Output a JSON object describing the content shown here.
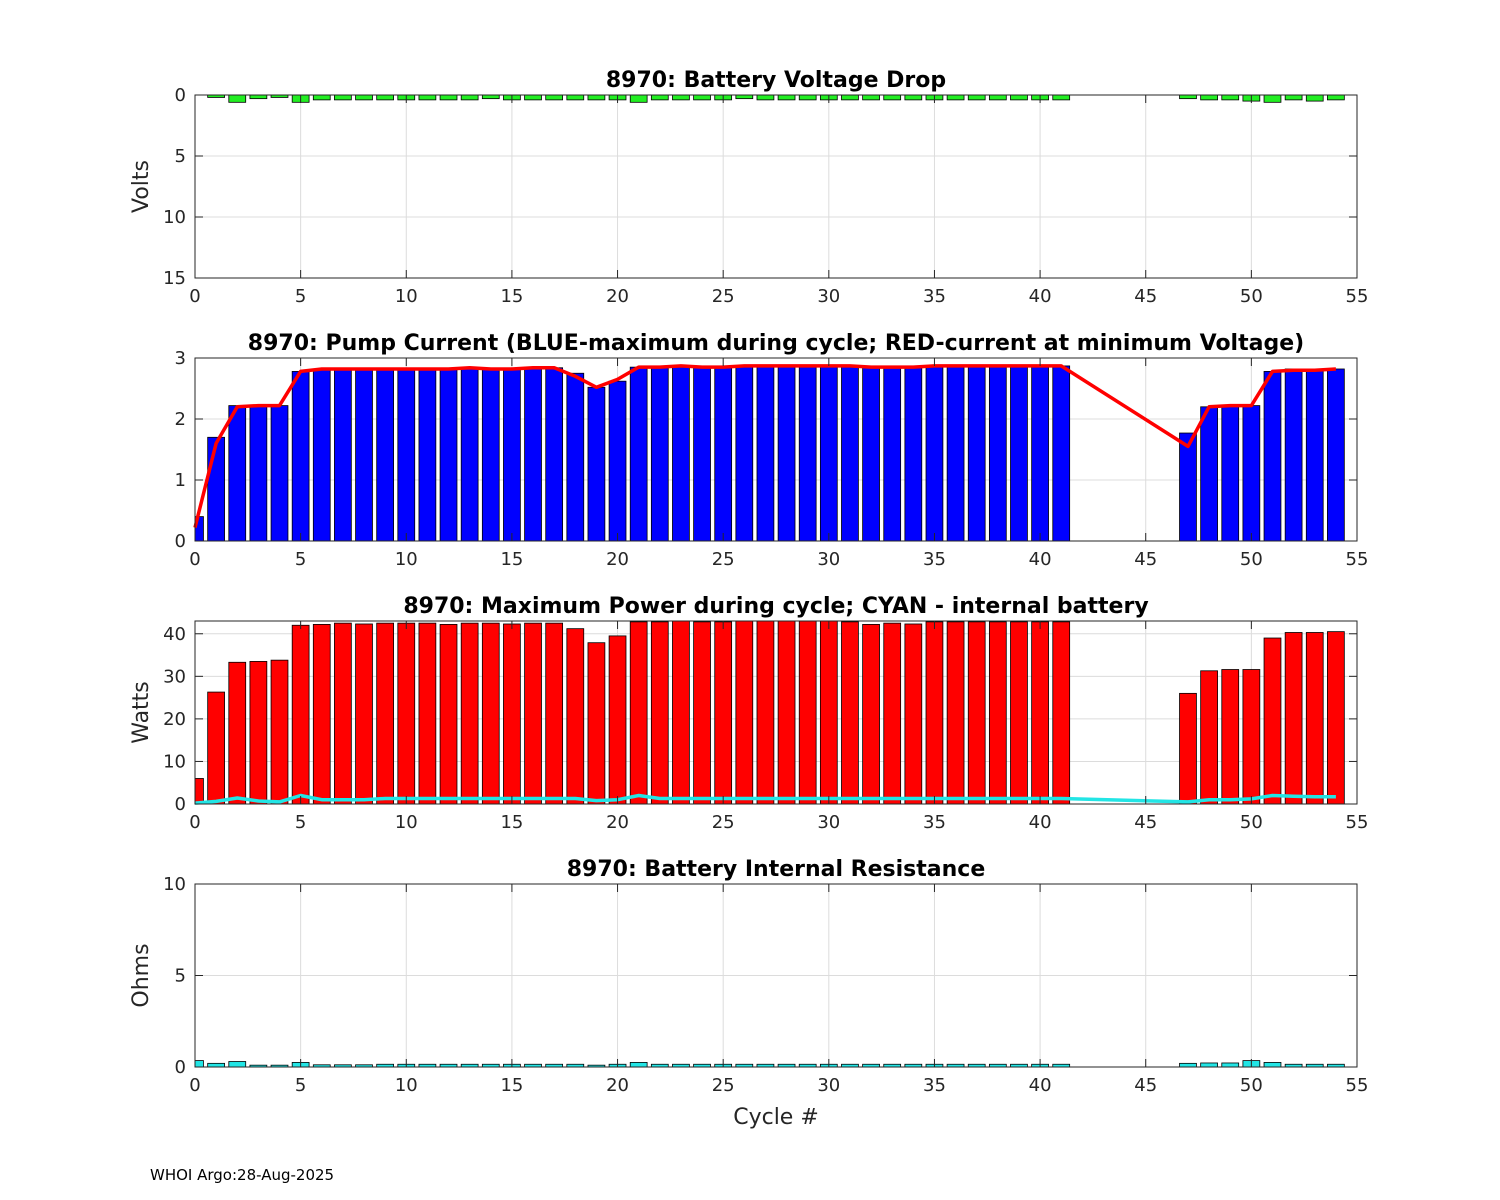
{
  "footer": "WHOI Argo:28-Aug-2025",
  "chart_data": [
    {
      "type": "bar",
      "title": "8970: Battery Voltage Drop",
      "ylabel": "Volts",
      "xlabel": "",
      "xlim": [
        0,
        55
      ],
      "ylim": [
        0,
        15
      ],
      "y_reversed": true,
      "xticks": [
        0,
        5,
        10,
        15,
        20,
        25,
        30,
        35,
        40,
        45,
        50,
        55
      ],
      "yticks": [
        0,
        5,
        10,
        15
      ],
      "grid": true,
      "bar_color": "#22ee22",
      "x": [
        1,
        2,
        3,
        4,
        5,
        6,
        7,
        8,
        9,
        10,
        11,
        12,
        13,
        14,
        15,
        16,
        17,
        18,
        19,
        20,
        21,
        22,
        23,
        24,
        25,
        26,
        27,
        28,
        29,
        30,
        31,
        32,
        33,
        34,
        35,
        36,
        37,
        38,
        39,
        40,
        41,
        47,
        48,
        49,
        50,
        51,
        52,
        53,
        54
      ],
      "values": [
        0.2,
        0.6,
        0.3,
        0.2,
        0.6,
        0.4,
        0.4,
        0.4,
        0.4,
        0.4,
        0.4,
        0.4,
        0.4,
        0.3,
        0.4,
        0.4,
        0.4,
        0.4,
        0.4,
        0.4,
        0.6,
        0.4,
        0.4,
        0.4,
        0.4,
        0.3,
        0.4,
        0.4,
        0.4,
        0.4,
        0.4,
        0.4,
        0.4,
        0.4,
        0.4,
        0.4,
        0.4,
        0.4,
        0.4,
        0.4,
        0.4,
        0.3,
        0.4,
        0.4,
        0.5,
        0.6,
        0.4,
        0.5,
        0.4
      ]
    },
    {
      "type": "bar",
      "title": "8970: Pump Current (BLUE-maximum during cycle; RED-current at minimum Voltage)",
      "ylabel": "",
      "xlabel": "",
      "xlim": [
        0,
        55
      ],
      "ylim": [
        0,
        3
      ],
      "xticks": [
        0,
        5,
        10,
        15,
        20,
        25,
        30,
        35,
        40,
        45,
        50,
        55
      ],
      "yticks": [
        0,
        1,
        2,
        3
      ],
      "grid": true,
      "bar_color": "#0000ff",
      "line_color": "#ff0000",
      "x": [
        0,
        1,
        2,
        3,
        4,
        5,
        6,
        7,
        8,
        9,
        10,
        11,
        12,
        13,
        14,
        15,
        16,
        17,
        18,
        19,
        20,
        21,
        22,
        23,
        24,
        25,
        26,
        27,
        28,
        29,
        30,
        31,
        32,
        33,
        34,
        35,
        36,
        37,
        38,
        39,
        40,
        41,
        47,
        48,
        49,
        50,
        51,
        52,
        53,
        54
      ],
      "values": [
        0.4,
        1.7,
        2.22,
        2.22,
        2.22,
        2.78,
        2.82,
        2.82,
        2.82,
        2.82,
        2.82,
        2.82,
        2.82,
        2.84,
        2.82,
        2.82,
        2.84,
        2.84,
        2.75,
        2.52,
        2.62,
        2.85,
        2.85,
        2.87,
        2.85,
        2.85,
        2.87,
        2.87,
        2.87,
        2.87,
        2.87,
        2.87,
        2.85,
        2.85,
        2.85,
        2.87,
        2.87,
        2.87,
        2.87,
        2.87,
        2.87,
        2.87,
        1.77,
        2.2,
        2.22,
        2.22,
        2.78,
        2.82,
        2.82,
        2.82
      ],
      "line_values": [
        0.22,
        1.6,
        2.2,
        2.22,
        2.22,
        2.78,
        2.82,
        2.82,
        2.82,
        2.82,
        2.82,
        2.82,
        2.82,
        2.84,
        2.82,
        2.82,
        2.84,
        2.84,
        2.7,
        2.52,
        2.65,
        2.85,
        2.85,
        2.87,
        2.85,
        2.85,
        2.87,
        2.87,
        2.87,
        2.87,
        2.87,
        2.87,
        2.85,
        2.85,
        2.85,
        2.87,
        2.87,
        2.87,
        2.87,
        2.87,
        2.87,
        2.87,
        1.55,
        2.2,
        2.22,
        2.22,
        2.78,
        2.8,
        2.8,
        2.82
      ]
    },
    {
      "type": "bar",
      "title": "8970: Maximum Power during cycle; CYAN - internal battery",
      "ylabel": "Watts",
      "xlabel": "",
      "xlim": [
        0,
        55
      ],
      "ylim": [
        0,
        43
      ],
      "xticks": [
        0,
        5,
        10,
        15,
        20,
        25,
        30,
        35,
        40,
        45,
        50,
        55
      ],
      "yticks": [
        0,
        10,
        20,
        30,
        40
      ],
      "grid": true,
      "bar_color": "#ff0000",
      "line_color": "#22e5e5",
      "x": [
        0,
        1,
        2,
        3,
        4,
        5,
        6,
        7,
        8,
        9,
        10,
        11,
        12,
        13,
        14,
        15,
        16,
        17,
        18,
        19,
        20,
        21,
        22,
        23,
        24,
        25,
        26,
        27,
        28,
        29,
        30,
        31,
        32,
        33,
        34,
        35,
        36,
        37,
        38,
        39,
        40,
        41,
        47,
        48,
        49,
        50,
        51,
        52,
        53,
        54
      ],
      "values": [
        6,
        26.3,
        33.3,
        33.5,
        33.8,
        42,
        42.2,
        42.5,
        42.3,
        42.5,
        42.5,
        42.5,
        42.2,
        42.5,
        42.5,
        42.3,
        42.5,
        42.5,
        41.2,
        37.9,
        39.5,
        42.8,
        42.8,
        43,
        42.8,
        42.8,
        43,
        43,
        43,
        43,
        43,
        42.8,
        42.2,
        42.5,
        42.3,
        42.8,
        42.8,
        42.8,
        42.8,
        42.8,
        42.8,
        42.8,
        26,
        31.3,
        31.6,
        31.6,
        39,
        40.3,
        40.3,
        40.5
      ],
      "line_values": [
        0.2,
        0.6,
        1.4,
        0.7,
        0.5,
        2,
        1,
        1,
        1,
        1.3,
        1.3,
        1.3,
        1.3,
        1.3,
        1.3,
        1.3,
        1.3,
        1.3,
        1.3,
        0.8,
        1,
        2,
        1.3,
        1.3,
        1.3,
        1.3,
        1.3,
        1.3,
        1.3,
        1.3,
        1.3,
        1.3,
        1.3,
        1.3,
        1.3,
        1.3,
        1.3,
        1.3,
        1.3,
        1.3,
        1.3,
        1.3,
        0.5,
        1,
        1,
        1.2,
        2,
        1.8,
        1.7,
        1.7
      ]
    },
    {
      "type": "bar",
      "title": "8970: Battery Internal Resistance",
      "ylabel": "Ohms",
      "xlabel": "Cycle #",
      "xlim": [
        0,
        55
      ],
      "ylim": [
        0,
        10
      ],
      "xticks": [
        0,
        5,
        10,
        15,
        20,
        25,
        30,
        35,
        40,
        45,
        50,
        55
      ],
      "yticks": [
        0,
        5,
        10
      ],
      "grid": true,
      "bar_color": "#22e5e5",
      "x": [
        0,
        1,
        2,
        3,
        4,
        5,
        6,
        7,
        8,
        9,
        10,
        11,
        12,
        13,
        14,
        15,
        16,
        17,
        18,
        19,
        20,
        21,
        22,
        23,
        24,
        25,
        26,
        27,
        28,
        29,
        30,
        31,
        32,
        33,
        34,
        35,
        36,
        37,
        38,
        39,
        40,
        41,
        47,
        48,
        49,
        50,
        51,
        52,
        53,
        54
      ],
      "values": [
        0.35,
        0.2,
        0.3,
        0.1,
        0.1,
        0.25,
        0.12,
        0.12,
        0.12,
        0.15,
        0.15,
        0.15,
        0.15,
        0.15,
        0.15,
        0.15,
        0.15,
        0.15,
        0.15,
        0.1,
        0.15,
        0.25,
        0.15,
        0.15,
        0.15,
        0.15,
        0.15,
        0.15,
        0.15,
        0.15,
        0.15,
        0.15,
        0.15,
        0.15,
        0.15,
        0.15,
        0.15,
        0.15,
        0.15,
        0.15,
        0.15,
        0.15,
        0.2,
        0.22,
        0.22,
        0.35,
        0.25,
        0.15,
        0.15,
        0.15
      ]
    }
  ]
}
